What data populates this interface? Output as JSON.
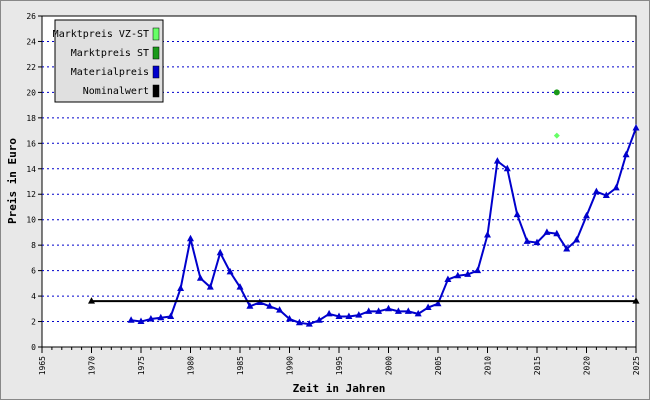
{
  "chart_data": {
    "type": "line",
    "xlabel": "Zeit in Jahren",
    "ylabel": "Preis in Euro",
    "xlim": [
      1965,
      2025
    ],
    "ylim": [
      0,
      26
    ],
    "xticks": [
      1965,
      1970,
      1975,
      1980,
      1985,
      1990,
      1995,
      2000,
      2005,
      2010,
      2015,
      2020,
      2025
    ],
    "yticks": [
      0,
      2,
      4,
      6,
      8,
      10,
      12,
      14,
      16,
      18,
      20,
      22,
      24,
      26
    ],
    "grid": true,
    "legend": "top-left",
    "series": [
      {
        "name": "Marktpreis VZ-ST",
        "color": "#66ff66",
        "marker": "diamond",
        "x": [
          2017
        ],
        "values": [
          16.6
        ]
      },
      {
        "name": "Marktpreis ST",
        "color": "#1a9a1a",
        "marker": "circle",
        "x": [
          2017
        ],
        "values": [
          20
        ]
      },
      {
        "name": "Materialpreis",
        "color": "#0000cc",
        "marker": "triangle",
        "x": [
          1974,
          1975,
          1976,
          1977,
          1978,
          1979,
          1980,
          1981,
          1982,
          1983,
          1984,
          1985,
          1986,
          1987,
          1988,
          1989,
          1990,
          1991,
          1992,
          1993,
          1994,
          1995,
          1996,
          1997,
          1998,
          1999,
          2000,
          2001,
          2002,
          2003,
          2004,
          2005,
          2006,
          2007,
          2008,
          2009,
          2010,
          2011,
          2012,
          2013,
          2014,
          2015,
          2016,
          2017,
          2018,
          2019,
          2020,
          2021,
          2022,
          2023,
          2024,
          2025
        ],
        "values": [
          2.1,
          2.0,
          2.2,
          2.3,
          2.4,
          4.6,
          8.5,
          5.4,
          4.7,
          7.4,
          5.9,
          4.7,
          3.2,
          3.5,
          3.2,
          2.9,
          2.2,
          1.9,
          1.8,
          2.1,
          2.6,
          2.4,
          2.4,
          2.5,
          2.8,
          2.8,
          3.0,
          2.8,
          2.8,
          2.6,
          3.1,
          3.4,
          5.3,
          5.6,
          5.7,
          6.0,
          8.8,
          14.6,
          14.0,
          10.4,
          8.3,
          8.2,
          9.0,
          8.9,
          7.7,
          8.4,
          10.3,
          12.2,
          11.9,
          12.5,
          15.1,
          17.2
        ]
      },
      {
        "name": "Nominalwert",
        "color": "#000000",
        "marker": "triangle",
        "x": [
          1970,
          2025
        ],
        "values": [
          3.6,
          3.6
        ]
      }
    ]
  }
}
